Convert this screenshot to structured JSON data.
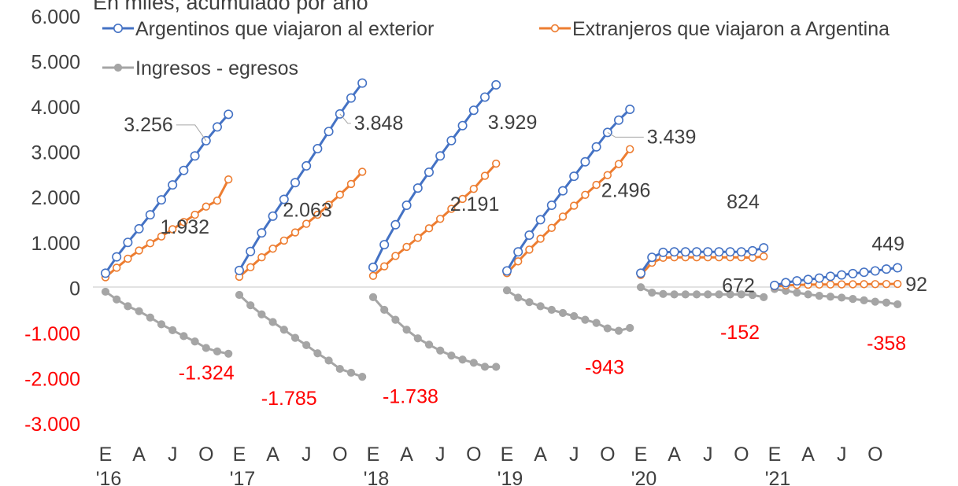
{
  "chart_data": {
    "type": "line",
    "title": "En miles, acumulado por año",
    "ylim": [
      -3000,
      6000
    ],
    "y_ticks": [
      6000,
      5000,
      4000,
      3000,
      2000,
      1000,
      0,
      -1000,
      -2000,
      -3000
    ],
    "y_tick_labels": [
      "6.000",
      "5.000",
      "4.000",
      "3.000",
      "2.000",
      "1.000",
      "0",
      "-1.000",
      "-2.000",
      "-3.000"
    ],
    "x_month_labels": [
      "E",
      "A",
      "J",
      "O",
      "E",
      "A",
      "J",
      "O",
      "E",
      "A",
      "J",
      "O",
      "E",
      "A",
      "J",
      "O",
      "E",
      "A",
      "J",
      "O",
      "E",
      "A",
      "J",
      "O"
    ],
    "x_year_labels": [
      "'16",
      "'17",
      "'18",
      "'19",
      "'20",
      "'21"
    ],
    "legend_position": "top",
    "colors": {
      "argentinos": "#4472C4",
      "extranjeros": "#ED7D31",
      "saldo": "#A5A5A5",
      "negative_label": "#FF0000",
      "text": "#404040",
      "axis": "#D9D9D9"
    },
    "series": [
      {
        "name": "Argentinos que viajaron al exterior",
        "years": [
          [
            330,
            690,
            1010,
            1310,
            1620,
            1950,
            2280,
            2600,
            2920,
            3256,
            3560,
            3840
          ],
          [
            390,
            810,
            1220,
            1590,
            1960,
            2330,
            2700,
            3080,
            3460,
            3848,
            4200,
            4530
          ],
          [
            460,
            960,
            1400,
            1830,
            2210,
            2560,
            2920,
            3260,
            3590,
            3929,
            4220,
            4490
          ],
          [
            380,
            800,
            1170,
            1510,
            1830,
            2150,
            2470,
            2790,
            3120,
            3439,
            3710,
            3950
          ],
          [
            330,
            680,
            790,
            800,
            800,
            800,
            800,
            800,
            800,
            800,
            824,
            890
          ],
          [
            60,
            120,
            160,
            190,
            220,
            260,
            290,
            320,
            350,
            380,
            420,
            449
          ]
        ]
      },
      {
        "name": "Extranjeros que viajaron a Argentina",
        "years": [
          [
            240,
            450,
            650,
            830,
            990,
            1140,
            1300,
            1460,
            1620,
            1800,
            1932,
            2400
          ],
          [
            250,
            460,
            680,
            870,
            1050,
            1230,
            1420,
            1620,
            1840,
            2063,
            2300,
            2570
          ],
          [
            270,
            480,
            710,
            910,
            1110,
            1320,
            1530,
            1750,
            1970,
            2191,
            2480,
            2750
          ],
          [
            330,
            590,
            850,
            1090,
            1330,
            1580,
            1820,
            2060,
            2280,
            2496,
            2740,
            3070
          ],
          [
            290,
            560,
            670,
            680,
            680,
            680,
            680,
            680,
            680,
            680,
            672,
            700
          ],
          [
            40,
            60,
            70,
            75,
            78,
            80,
            82,
            84,
            86,
            88,
            90,
            92
          ]
        ]
      },
      {
        "name": "Ingresos - egresos",
        "years": [
          [
            -80,
            -250,
            -400,
            -510,
            -650,
            -800,
            -930,
            -1060,
            -1180,
            -1324,
            -1400,
            -1450
          ],
          [
            -150,
            -380,
            -580,
            -750,
            -920,
            -1100,
            -1260,
            -1440,
            -1600,
            -1785,
            -1870,
            -1960
          ],
          [
            -200,
            -480,
            -700,
            -920,
            -1110,
            -1250,
            -1380,
            -1490,
            -1580,
            -1650,
            -1738,
            -1740
          ],
          [
            -50,
            -210,
            -310,
            -400,
            -480,
            -550,
            -620,
            -700,
            -770,
            -890,
            -943,
            -880
          ],
          [
            20,
            -100,
            -130,
            -140,
            -140,
            -140,
            -140,
            -140,
            -140,
            -140,
            -152,
            -200
          ],
          [
            -20,
            -60,
            -100,
            -140,
            -170,
            -190,
            -210,
            -240,
            -270,
            -300,
            -320,
            -358
          ]
        ]
      }
    ],
    "annotations": [
      {
        "text": "3.256",
        "series": 0,
        "year": 0,
        "point": 9
      },
      {
        "text": "3.848",
        "series": 0,
        "year": 1,
        "point": 9
      },
      {
        "text": "3.929",
        "series": 0,
        "year": 2,
        "point": 9
      },
      {
        "text": "3.439",
        "series": 0,
        "year": 3,
        "point": 9
      },
      {
        "text": "824",
        "series": 0,
        "year": 4,
        "point": 10
      },
      {
        "text": "449",
        "series": 0,
        "year": 5,
        "point": 11
      },
      {
        "text": "1.932",
        "series": 1,
        "year": 0,
        "point": 10
      },
      {
        "text": "2.063",
        "series": 1,
        "year": 1,
        "point": 9
      },
      {
        "text": "2.191",
        "series": 1,
        "year": 2,
        "point": 9
      },
      {
        "text": "2.496",
        "series": 1,
        "year": 3,
        "point": 9
      },
      {
        "text": "672",
        "series": 1,
        "year": 4,
        "point": 10
      },
      {
        "text": "92",
        "series": 1,
        "year": 5,
        "point": 11
      },
      {
        "text": "-1.324",
        "series": 2,
        "year": 0,
        "point": 9
      },
      {
        "text": "-1.785",
        "series": 2,
        "year": 1,
        "point": 9
      },
      {
        "text": "-1.738",
        "series": 2,
        "year": 2,
        "point": 10
      },
      {
        "text": "-943",
        "series": 2,
        "year": 3,
        "point": 10
      },
      {
        "text": "-152",
        "series": 2,
        "year": 4,
        "point": 10
      },
      {
        "text": "-358",
        "series": 2,
        "year": 5,
        "point": 11
      }
    ]
  }
}
